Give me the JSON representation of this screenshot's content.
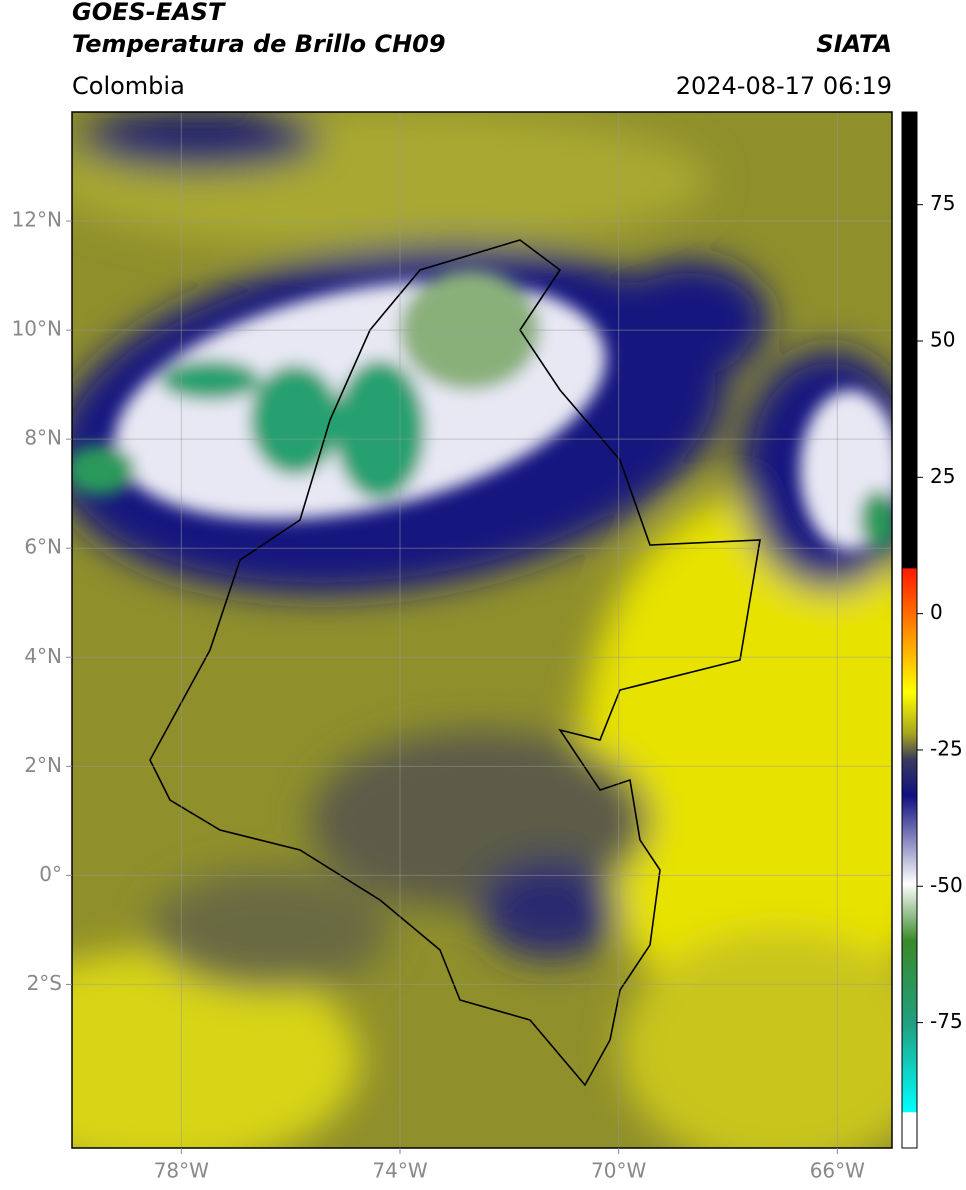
{
  "header": {
    "title": "GOES-EAST",
    "subtitle": "Temperatura de Brillo CH09",
    "source": "SIATA",
    "region": "Colombia",
    "datetime": "2024-08-17 06:19"
  },
  "map": {
    "xlim": [
      -80,
      -65
    ],
    "ylim": [
      -5,
      14
    ],
    "xticks": [
      {
        "value": -78,
        "label": "78°W"
      },
      {
        "value": -74,
        "label": "74°W"
      },
      {
        "value": -70,
        "label": "70°W"
      },
      {
        "value": -66,
        "label": "66°W"
      }
    ],
    "yticks": [
      {
        "value": 12,
        "label": "12°N"
      },
      {
        "value": 10,
        "label": "10°N"
      },
      {
        "value": 8,
        "label": "8°N"
      },
      {
        "value": 6,
        "label": "6°N"
      },
      {
        "value": 4,
        "label": "4°N"
      },
      {
        "value": 2,
        "label": "2°N"
      },
      {
        "value": 0,
        "label": "0°"
      },
      {
        "value": -2,
        "label": "2°S"
      }
    ],
    "grid": true
  },
  "colorbar": {
    "lim": [
      -98,
      92
    ],
    "ticks": [
      75,
      50,
      25,
      0,
      -25,
      -50,
      -75
    ]
  }
}
